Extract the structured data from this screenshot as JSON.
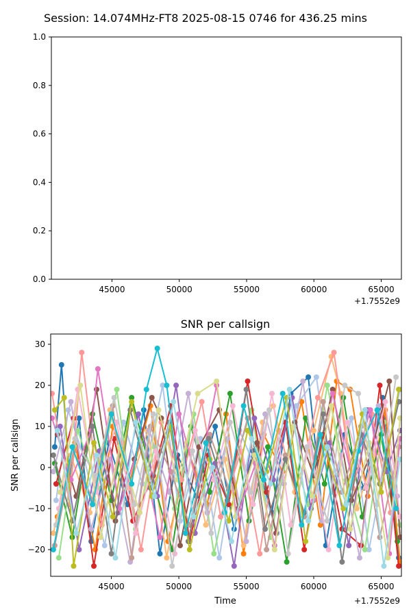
{
  "figure": {
    "suptitle": "Session: 14.074MHz-FT8 2025-08-15 0746 for 436.25 mins"
  },
  "chart_data": [
    {
      "type": "line",
      "title": "",
      "xlabel": "",
      "ylabel": "",
      "xlim": [
        40500,
        66500
      ],
      "ylim": [
        0.0,
        1.0
      ],
      "x_ticks": [
        45000,
        50000,
        55000,
        60000,
        65000
      ],
      "x_tick_labels": [
        "45000",
        "50000",
        "55000",
        "60000",
        "65000"
      ],
      "y_ticks": [
        0.0,
        0.2,
        0.4,
        0.6,
        0.8,
        1.0
      ],
      "y_tick_labels": [
        "0.0",
        "0.2",
        "0.4",
        "0.6",
        "0.8",
        "1.0"
      ],
      "x_offset_label": "+1.7552e9",
      "grid": false,
      "series": []
    },
    {
      "type": "line",
      "title": "SNR per callsign",
      "xlabel": "Time",
      "ylabel": "SNR per callsign",
      "xlim": [
        40500,
        66500
      ],
      "ylim": [
        -26.5,
        32.5
      ],
      "x_ticks": [
        45000,
        50000,
        55000,
        60000,
        65000
      ],
      "x_tick_labels": [
        "45000",
        "50000",
        "55000",
        "60000",
        "65000"
      ],
      "y_ticks": [
        -20,
        -10,
        0,
        10,
        20,
        30
      ],
      "y_tick_labels": [
        "−20",
        "−10",
        "0",
        "10",
        "20",
        "30"
      ],
      "x_offset_label": "+1.7552e9",
      "grid": false,
      "marker": "o",
      "palette": [
        "#1f77b4",
        "#aec7e8",
        "#ff7f0e",
        "#ffbb78",
        "#2ca02c",
        "#98df8a",
        "#d62728",
        "#ff9896",
        "#9467bd",
        "#c5b0d5",
        "#8c564b",
        "#c49c94",
        "#e377c2",
        "#f7b6d2",
        "#7f7f7f",
        "#c7c7c7",
        "#bcbd22",
        "#dbdb8d",
        "#17becf",
        "#9edae5"
      ],
      "series": [
        {
          "color": "#1f77b4",
          "x": [
            40800,
            41300,
            41900,
            42600,
            43500,
            44800,
            46200,
            47400,
            48600,
            49900,
            51300,
            52700,
            54100,
            55500,
            56900,
            58300,
            59600,
            60900,
            62300,
            63700,
            65100,
            66300
          ],
          "y": [
            5,
            25,
            -3,
            12,
            -18,
            6,
            -9,
            14,
            -21,
            3,
            -7,
            10,
            -15,
            4,
            -11,
            18,
            22,
            -19,
            8,
            -5,
            17,
            -22
          ]
        },
        {
          "color": "#aec7e8",
          "x": [
            40900,
            41800,
            43000,
            44500,
            45900,
            47300,
            48800,
            50100,
            51600,
            53000,
            54500,
            55900,
            57300,
            58700,
            60200,
            61400,
            62800,
            64100,
            65400,
            66400
          ],
          "y": [
            -8,
            14,
            2,
            -19,
            11,
            -4,
            20,
            -13,
            7,
            -22,
            9,
            -2,
            -16,
            15,
            22,
            -6,
            12,
            -20,
            3,
            19
          ]
        },
        {
          "color": "#ff7f0e",
          "x": [
            41000,
            42300,
            43800,
            45100,
            46400,
            47900,
            49200,
            50700,
            52100,
            53500,
            54800,
            56300,
            57700,
            59100,
            60500,
            61700,
            62700,
            64000,
            65300,
            66400
          ],
          "y": [
            -12,
            6,
            -20,
            10,
            -3,
            15,
            -18,
            4,
            -9,
            13,
            -21,
            8,
            -1,
            16,
            -14,
            21,
            19,
            -7,
            14,
            -23
          ]
        },
        {
          "color": "#ffbb78",
          "x": [
            40700,
            42000,
            43400,
            44900,
            46300,
            47700,
            49100,
            50600,
            52000,
            53400,
            54800,
            56200,
            57000,
            58600,
            60000,
            61300,
            62000,
            63200,
            64600,
            66000
          ],
          "y": [
            -16,
            3,
            -11,
            14,
            -5,
            9,
            -22,
            6,
            -14,
            2,
            -19,
            11,
            15,
            -6,
            9,
            27,
            18,
            -10,
            4,
            -3
          ]
        },
        {
          "color": "#2ca02c",
          "x": [
            40800,
            42100,
            43600,
            45000,
            46500,
            48000,
            49500,
            50900,
            52300,
            53800,
            55200,
            56600,
            58000,
            59400,
            60800,
            62200,
            63600,
            65000,
            66200
          ],
          "y": [
            1,
            -17,
            13,
            -8,
            17,
            -2,
            -20,
            10,
            -6,
            18,
            -13,
            5,
            -23,
            12,
            -4,
            17,
            -12,
            8,
            -18
          ]
        },
        {
          "color": "#98df8a",
          "x": [
            41100,
            42500,
            44000,
            45400,
            46800,
            48200,
            49700,
            51100,
            52600,
            54000,
            55400,
            56800,
            58200,
            59600,
            61000,
            62400,
            63800,
            65200,
            66400
          ],
          "y": [
            -22,
            9,
            -5,
            19,
            -15,
            5,
            -10,
            13,
            -21,
            0,
            14,
            -17,
            6,
            -9,
            20,
            -3,
            -20,
            11,
            -14
          ]
        },
        {
          "color": "#d62728",
          "x": [
            40900,
            42200,
            43700,
            45200,
            46600,
            48100,
            49400,
            50800,
            52200,
            53700,
            55100,
            56500,
            57900,
            59300,
            60700,
            62100,
            63500,
            64900,
            66300
          ],
          "y": [
            -4,
            12,
            -24,
            7,
            -13,
            -2,
            15,
            -18,
            3,
            -9,
            21,
            -6,
            11,
            -20,
            8,
            -15,
            -19,
            20,
            -24
          ]
        },
        {
          "color": "#ff9896",
          "x": [
            40600,
            41900,
            42800,
            44300,
            45800,
            47200,
            48700,
            50200,
            51700,
            53100,
            54600,
            56000,
            57400,
            58800,
            60300,
            61500,
            62900,
            64300,
            65700
          ],
          "y": [
            18,
            -9,
            28,
            -14,
            6,
            -20,
            11,
            -3,
            16,
            -12,
            4,
            -21,
            9,
            -7,
            17,
            28,
            -5,
            13,
            -11
          ]
        },
        {
          "color": "#9467bd",
          "x": [
            41200,
            42600,
            44100,
            45500,
            47000,
            48400,
            49800,
            51200,
            52700,
            54100,
            55600,
            57000,
            58400,
            59800,
            61200,
            62600,
            64000,
            65400,
            66400
          ],
          "y": [
            10,
            -20,
            4,
            -11,
            13,
            -7,
            20,
            -16,
            1,
            -24,
            12,
            -3,
            17,
            -10,
            6,
            -19,
            14,
            -1,
            9
          ]
        },
        {
          "color": "#c5b0d5",
          "x": [
            40700,
            42000,
            43500,
            44900,
            46400,
            47800,
            49300,
            50700,
            52100,
            53600,
            55000,
            56400,
            57800,
            59200,
            60600,
            62000,
            63400,
            64800,
            66200
          ],
          "y": [
            -1,
            16,
            -15,
            2,
            -23,
            9,
            -6,
            18,
            -11,
            7,
            -18,
            13,
            -4,
            21,
            -13,
            3,
            -22,
            15,
            -7
          ]
        },
        {
          "color": "#8c564b",
          "x": [
            41000,
            42400,
            43900,
            45300,
            46700,
            48000,
            48700,
            50100,
            51500,
            53000,
            54400,
            55800,
            57200,
            58600,
            60000,
            61400,
            62800,
            64200,
            65600,
            66400
          ],
          "y": [
            8,
            -7,
            19,
            -13,
            2,
            17,
            12,
            -19,
            5,
            14,
            -10,
            6,
            -16,
            11,
            -2,
            19,
            -8,
            3,
            21,
            -17
          ]
        },
        {
          "color": "#c49c94",
          "x": [
            40800,
            42200,
            43600,
            45100,
            46500,
            47900,
            49400,
            50800,
            52300,
            53700,
            55100,
            56500,
            57900,
            59300,
            60700,
            62100,
            63500,
            64900,
            66300
          ],
          "y": [
            -19,
            4,
            -8,
            15,
            -22,
            10,
            -1,
            -14,
            8,
            -5,
            12,
            -20,
            3,
            -12,
            16,
            -6,
            10,
            -17,
            5
          ]
        },
        {
          "color": "#e377c2",
          "x": [
            40600,
            42000,
            43500,
            44000,
            45600,
            47100,
            48600,
            50000,
            51400,
            52800,
            54300,
            55700,
            57100,
            58500,
            60000,
            61400,
            62800,
            64200,
            65600,
            66400
          ],
          "y": [
            12,
            -3,
            9,
            24,
            -10,
            6,
            -17,
            13,
            -4,
            20,
            -12,
            1,
            -19,
            10,
            -8,
            18,
            -2,
            14,
            -21,
            7
          ]
        },
        {
          "color": "#f7b6d2",
          "x": [
            41100,
            42500,
            43900,
            45400,
            46800,
            48300,
            49700,
            51200,
            52600,
            54000,
            55500,
            56900,
            58300,
            59700,
            61100,
            62500,
            63900,
            65300,
            66400
          ],
          "y": [
            -10,
            19,
            -6,
            11,
            -16,
            4,
            -21,
            9,
            -3,
            15,
            -9,
            18,
            -14,
            6,
            -20,
            11,
            -5,
            16,
            -12
          ]
        },
        {
          "color": "#7f7f7f",
          "x": [
            40700,
            42100,
            43600,
            45000,
            46400,
            47900,
            49300,
            50700,
            52200,
            53600,
            55000,
            56400,
            57900,
            59300,
            60700,
            62100,
            63500,
            64900,
            66300
          ],
          "y": [
            3,
            -13,
            10,
            -21,
            14,
            -5,
            11,
            -18,
            7,
            -8,
            19,
            -15,
            2,
            -11,
            13,
            -23,
            8,
            -4,
            16
          ]
        },
        {
          "color": "#c7c7c7",
          "x": [
            40900,
            42300,
            43800,
            45200,
            46700,
            48100,
            49500,
            51000,
            52400,
            53800,
            55300,
            56700,
            58100,
            59500,
            61000,
            62300,
            63300,
            64700,
            66100
          ],
          "y": [
            -14,
            7,
            -2,
            17,
            -9,
            13,
            -24,
            4,
            -16,
            11,
            -6,
            14,
            -21,
            5,
            -13,
            20,
            18,
            -9,
            22
          ]
        },
        {
          "color": "#bcbd22",
          "x": [
            40800,
            41500,
            42200,
            43700,
            45100,
            46500,
            48000,
            49400,
            50800,
            52300,
            53700,
            55100,
            56500,
            58000,
            59400,
            60800,
            62200,
            63600,
            65000,
            66300
          ],
          "y": [
            14,
            17,
            -24,
            6,
            -12,
            16,
            -7,
            10,
            -20,
            2,
            -13,
            9,
            -1,
            17,
            -18,
            5,
            -10,
            13,
            -6,
            19
          ]
        },
        {
          "color": "#dbdb8d",
          "x": [
            41200,
            42700,
            44200,
            45600,
            47100,
            48500,
            49900,
            51400,
            52800,
            54200,
            55600,
            57100,
            58500,
            59900,
            61300,
            62700,
            64100,
            65500,
            66400
          ],
          "y": [
            -6,
            20,
            -17,
            5,
            -11,
            14,
            -3,
            18,
            21,
            -12,
            3,
            -20,
            10,
            -7,
            15,
            -15,
            6,
            -22,
            12
          ]
        },
        {
          "color": "#17becf",
          "x": [
            40700,
            42100,
            43600,
            45000,
            46500,
            47600,
            48400,
            49100,
            50500,
            52000,
            53400,
            54800,
            56300,
            57700,
            59100,
            60500,
            61900,
            63300,
            64700,
            66100
          ],
          "y": [
            -20,
            5,
            -9,
            13,
            -4,
            19,
            29,
            20,
            -16,
            6,
            -11,
            15,
            -3,
            18,
            -14,
            8,
            -19,
            4,
            14,
            -10
          ]
        },
        {
          "color": "#9edae5",
          "x": [
            41000,
            42400,
            43900,
            45300,
            46800,
            48200,
            49600,
            51100,
            52500,
            53900,
            55400,
            56800,
            58200,
            59600,
            61000,
            62400,
            63800,
            65200,
            66400
          ],
          "y": [
            9,
            -16,
            3,
            -22,
            11,
            -7,
            16,
            -12,
            0,
            -18,
            7,
            -4,
            19,
            -13,
            5,
            -9,
            14,
            -24,
            2
          ]
        }
      ]
    }
  ]
}
